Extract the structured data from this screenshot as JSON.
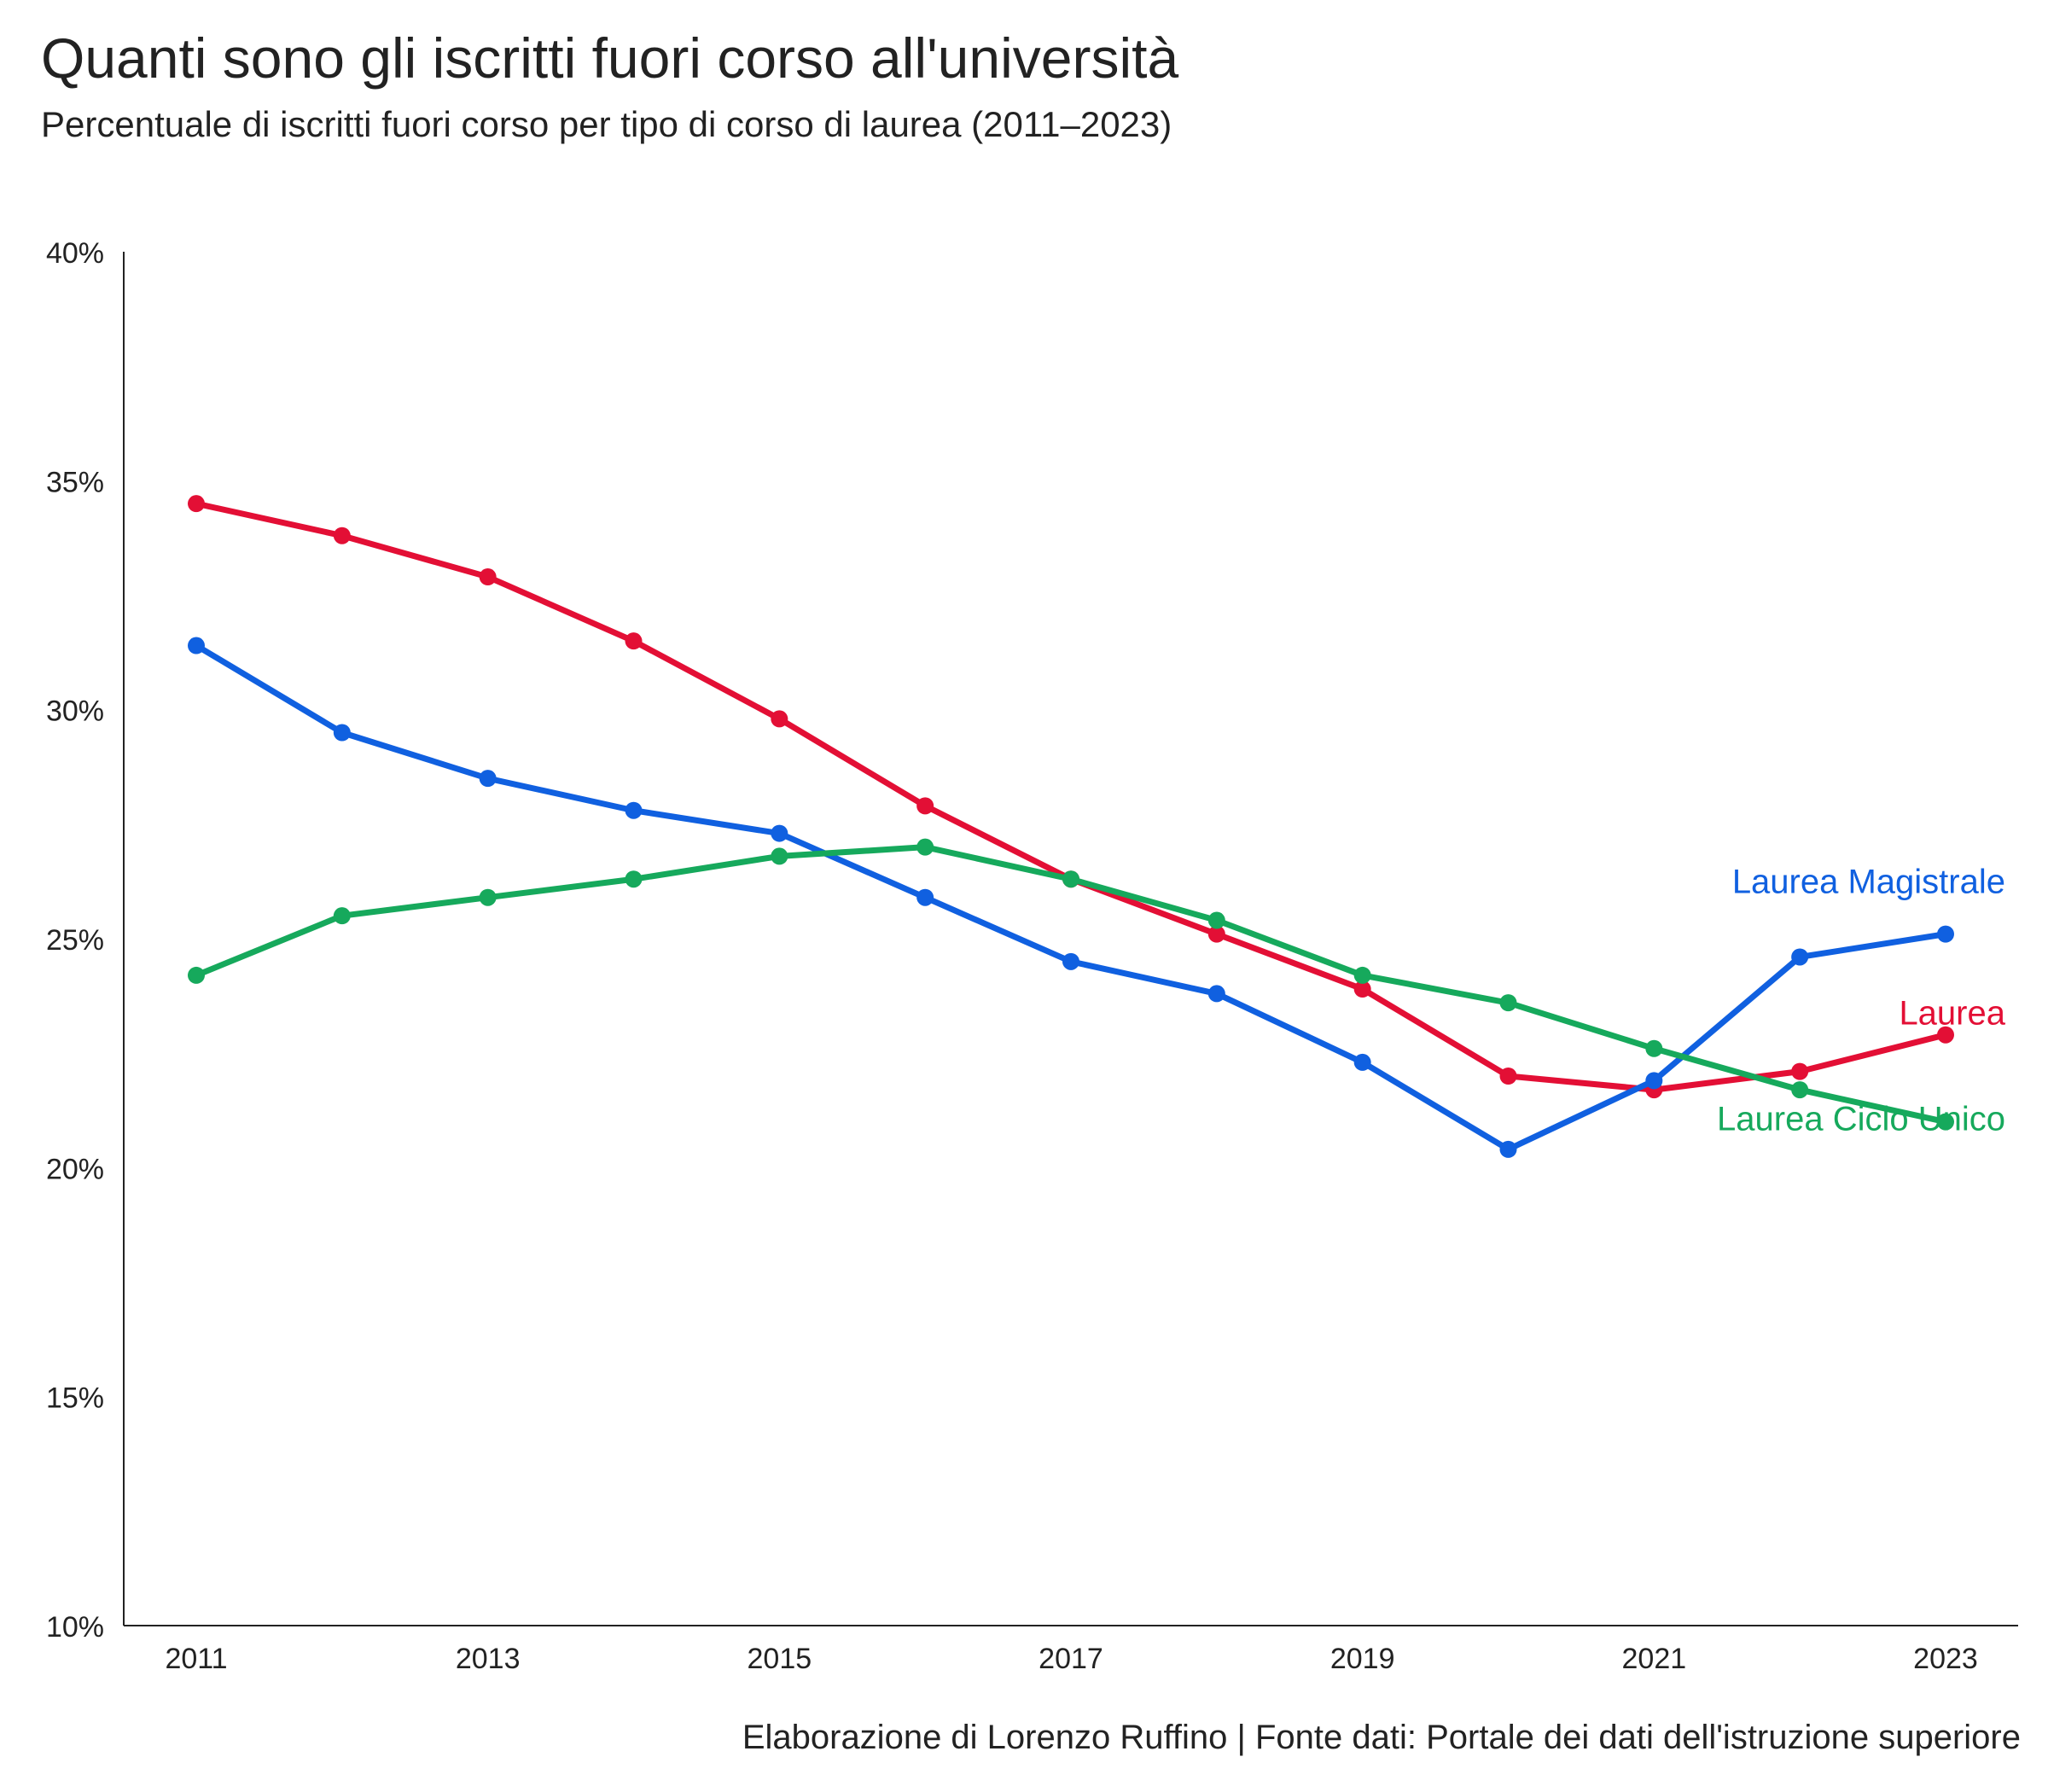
{
  "title": "Quanti sono gli iscritti fuori corso all'università",
  "subtitle": "Percentuale di iscritti fuori corso per tipo di corso di laurea (2011–2023)",
  "caption": "Elaborazione di Lorenzo Ruffino | Fonte dati: Portale dei dati dell'istruzione superiore",
  "chart_data": {
    "type": "line",
    "x": [
      2011,
      2012,
      2013,
      2014,
      2015,
      2016,
      2017,
      2018,
      2019,
      2020,
      2021,
      2022,
      2023
    ],
    "x_tick_labels": [
      "2011",
      "2013",
      "2015",
      "2017",
      "2019",
      "2021",
      "2023"
    ],
    "y_tick_labels": [
      "10%",
      "15%",
      "20%",
      "25%",
      "30%",
      "35%",
      "40%"
    ],
    "xlim": [
      2010.5,
      2023.5
    ],
    "ylim": [
      10,
      40
    ],
    "grid": false,
    "series": [
      {
        "name": "Laurea",
        "color": "#e30f35",
        "values": [
          34.5,
          33.8,
          32.9,
          31.5,
          29.8,
          27.9,
          26.3,
          25.1,
          23.9,
          22.0,
          21.7,
          22.1,
          22.9
        ]
      },
      {
        "name": "Laurea Magistrale",
        "color": "#1060e0",
        "values": [
          31.4,
          29.5,
          28.5,
          27.8,
          27.3,
          25.9,
          24.5,
          23.8,
          22.3,
          20.4,
          21.9,
          24.6,
          25.1
        ]
      },
      {
        "name": "Laurea Ciclo Unico",
        "color": "#16a95c",
        "values": [
          24.2,
          25.5,
          25.9,
          26.3,
          26.8,
          27.0,
          26.3,
          25.4,
          24.2,
          23.6,
          22.6,
          21.7,
          21.0
        ]
      }
    ]
  }
}
